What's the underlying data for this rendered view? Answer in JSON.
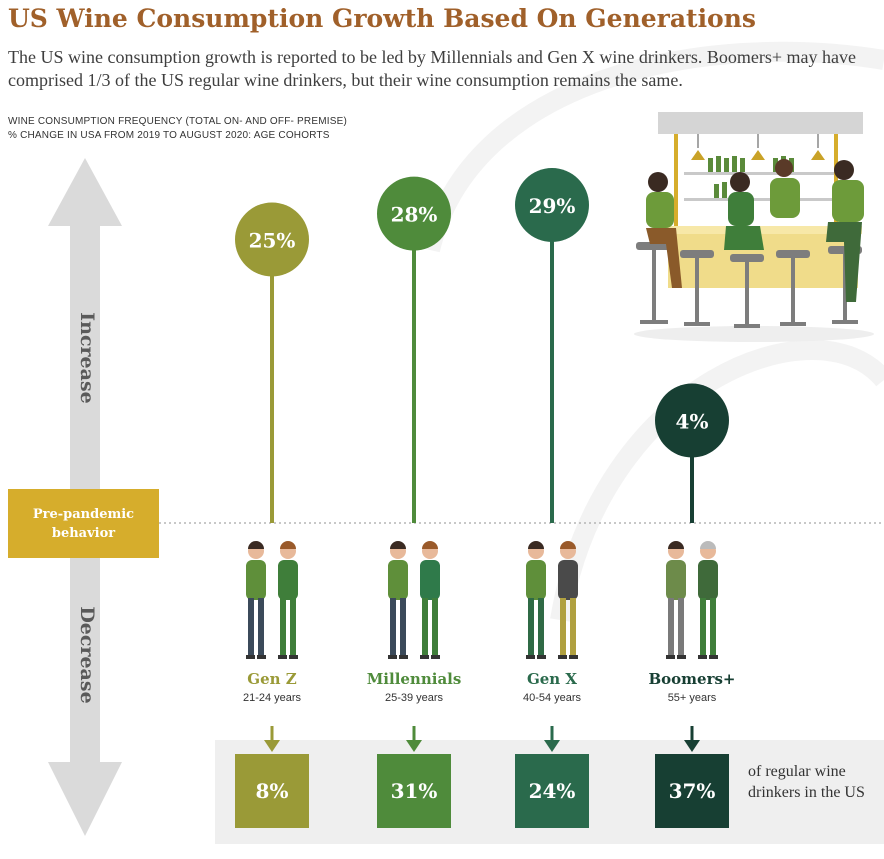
{
  "title": "US Wine Consumption Growth Based On Generations",
  "subtitle": "The US wine consumption growth is reported to be led by Millennials and Gen X wine drinkers. Boomers+ may have comprised 1/3 of the US regular wine drinkers, but their wine consumption remains the same.",
  "caption_line1": "WINE CONSUMPTION FREQUENCY (TOTAL ON- AND OFF- PREMISE)",
  "caption_line2": "% CHANGE IN USA FROM 2019 TO AUGUST 2020: AGE COHORTS",
  "axis": {
    "increase": "Increase",
    "decrease": "Decrease",
    "baseline_label_line1": "Pre-pandemic",
    "baseline_label_line2": "behavior"
  },
  "share_caption": "of regular wine drinkers in the US",
  "colors": {
    "gen_z": "#9a9a37",
    "millennials": "#4f8b3b",
    "gen_x": "#2a6a4c",
    "boomers": "#173f33",
    "baseline_label": "#d6ad2c",
    "title": "#a0602a"
  },
  "chart_data": {
    "type": "lollipop",
    "categories": [
      "Gen Z",
      "Millennials",
      "Gen X",
      "Boomers+"
    ],
    "age_ranges": [
      "21-24 years",
      "25-39 years",
      "40-54 years",
      "55+ years"
    ],
    "series": [
      {
        "values": [
          25,
          28,
          29,
          4
        ],
        "labels": [
          "25%",
          "28%",
          "29%",
          "4%"
        ]
      },
      {
        "values": [
          8,
          31,
          24,
          37
        ],
        "labels": [
          "8%",
          "31%",
          "24%",
          "37%"
        ]
      }
    ]
  }
}
